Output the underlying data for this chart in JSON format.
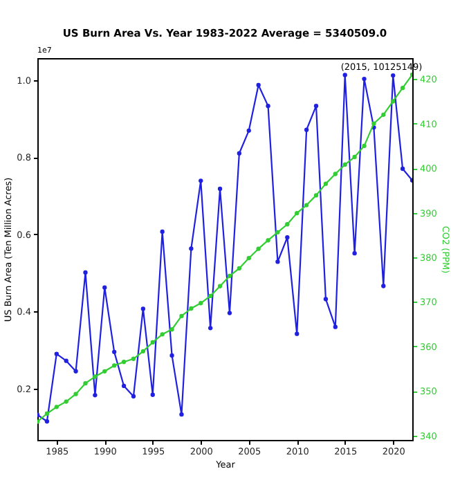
{
  "chart_data": {
    "type": "line",
    "title": "US Burn Area Vs. Year 1983-2022 Average = 5340509.0",
    "xlabel": "Year",
    "ylabel": "US Burn Area (Ten Million Acres)",
    "y2label": "CO2 (PPM)",
    "annotations": [
      "1e7",
      {
        "text": "(2015, 10125149)",
        "x": 2015,
        "y": 1.013
      }
    ],
    "x": [
      1983,
      1984,
      1985,
      1986,
      1987,
      1988,
      1989,
      1990,
      1991,
      1992,
      1993,
      1994,
      1995,
      1996,
      1997,
      1998,
      1999,
      2000,
      2001,
      2002,
      2003,
      2004,
      2005,
      2006,
      2007,
      2008,
      2009,
      2010,
      2011,
      2012,
      2013,
      2014,
      2015,
      2016,
      2017,
      2018,
      2019,
      2020,
      2021,
      2022
    ],
    "series": [
      {
        "color": "#2020e0",
        "values": [
          0.132,
          0.115,
          0.29,
          0.272,
          0.245,
          0.501,
          0.183,
          0.462,
          0.295,
          0.207,
          0.18,
          0.407,
          0.184,
          0.607,
          0.286,
          0.133,
          0.563,
          0.739,
          0.357,
          0.718,
          0.396,
          0.81,
          0.869,
          0.987,
          0.933,
          0.529,
          0.592,
          0.342,
          0.871,
          0.933,
          0.432,
          0.36,
          1.013,
          0.551,
          1.003,
          0.877,
          0.466,
          1.012,
          0.77,
          0.74
        ]
      },
      {
        "color": "#32cd32",
        "axis": "y2",
        "values": [
          343.1,
          344.9,
          346.4,
          347.6,
          349.3,
          351.7,
          353.2,
          354.4,
          355.7,
          356.5,
          357.2,
          358.9,
          360.9,
          362.7,
          363.8,
          366.8,
          368.5,
          369.7,
          371.3,
          373.5,
          375.8,
          377.5,
          379.8,
          381.9,
          383.8,
          385.6,
          387.4,
          389.9,
          391.7,
          393.9,
          396.5,
          398.7,
          400.8,
          402.5,
          405.0,
          410.0,
          412.0,
          415.0,
          418.0,
          421.0
        ]
      }
    ],
    "xlim": [
      1983,
      2022
    ],
    "xticks": [
      1985,
      1990,
      1995,
      2000,
      2005,
      2010,
      2015,
      2020
    ],
    "ylim": [
      0.067,
      1.057
    ],
    "yticks": [
      0.2,
      0.4,
      0.6,
      0.8,
      {
        "value": 1,
        "label": "1.0"
      }
    ],
    "y2lim": [
      339,
      424.7
    ],
    "y2ticks": [
      340,
      350,
      360,
      370,
      380,
      390,
      400,
      410,
      420
    ],
    "marker": "circle",
    "line_style": "solid",
    "grid": false
  }
}
